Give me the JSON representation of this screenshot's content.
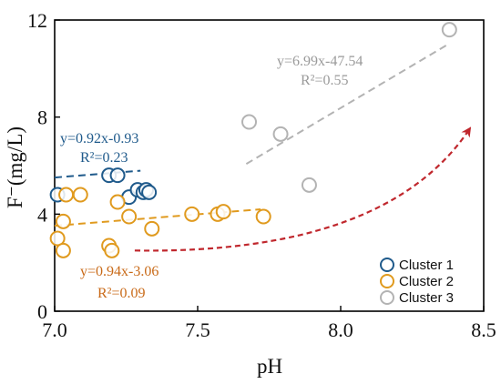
{
  "chart_data": {
    "type": "scatter",
    "xlabel": "pH",
    "ylabel": "F⁻(mg/L)",
    "xlim": [
      7.0,
      8.5
    ],
    "ylim": [
      0,
      12
    ],
    "x_ticks": [
      7.0,
      7.5,
      8.0,
      8.5
    ],
    "x_tick_labels": [
      "7.0",
      "7.5",
      "8.0",
      "8.5"
    ],
    "y_ticks": [
      0,
      4,
      8,
      12
    ],
    "y_tick_labels": [
      "0",
      "4",
      "8",
      "12"
    ],
    "grid": false,
    "legend_position": "bottom-right",
    "series": [
      {
        "name": "Cluster 1",
        "color": "#1f5a8b",
        "points": [
          [
            7.01,
            4.8
          ],
          [
            7.19,
            5.6
          ],
          [
            7.22,
            5.6
          ],
          [
            7.26,
            4.7
          ],
          [
            7.29,
            5.0
          ],
          [
            7.31,
            4.9
          ],
          [
            7.32,
            5.0
          ],
          [
            7.33,
            4.9
          ]
        ],
        "fit": {
          "x": [
            7.0,
            7.3
          ],
          "y": [
            5.51,
            5.79
          ],
          "equation": "y=0.92x-0.93",
          "r2": "R²=0.23"
        }
      },
      {
        "name": "Cluster 2",
        "color": "#e09a1e",
        "points": [
          [
            7.01,
            3.0
          ],
          [
            7.03,
            2.5
          ],
          [
            7.03,
            3.7
          ],
          [
            7.04,
            4.8
          ],
          [
            7.09,
            4.8
          ],
          [
            7.19,
            2.7
          ],
          [
            7.2,
            2.5
          ],
          [
            7.22,
            4.5
          ],
          [
            7.26,
            3.9
          ],
          [
            7.34,
            3.4
          ],
          [
            7.48,
            4.0
          ],
          [
            7.57,
            4.0
          ],
          [
            7.59,
            4.1
          ],
          [
            7.73,
            3.9
          ]
        ],
        "fit": {
          "x": [
            7.0,
            7.72
          ],
          "y": [
            3.52,
            4.2
          ],
          "equation": "y=0.94x-3.06",
          "r2": "R²=0.09"
        }
      },
      {
        "name": "Cluster 3",
        "color": "#b3b3b3",
        "points": [
          [
            7.68,
            7.8
          ],
          [
            7.79,
            7.3
          ],
          [
            7.89,
            5.2
          ],
          [
            8.38,
            11.6
          ]
        ],
        "fit": {
          "x": [
            7.67,
            8.38
          ],
          "y": [
            6.07,
            11.03
          ],
          "equation": "y=6.99x-47.54",
          "r2": "R²=0.55"
        }
      }
    ],
    "annotation_arrow": {
      "color": "#c0272d",
      "from": [
        7.28,
        2.5
      ],
      "to": [
        8.45,
        7.5
      ]
    }
  }
}
